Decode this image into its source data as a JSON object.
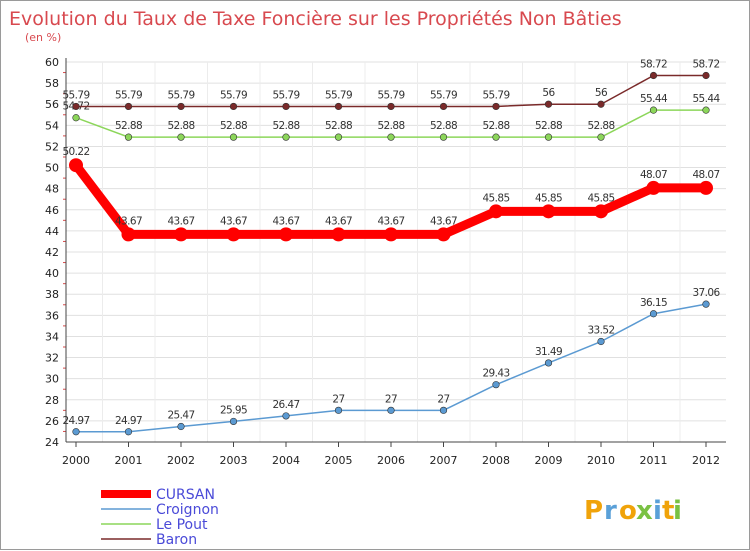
{
  "chart_data": {
    "type": "line",
    "title": "Evolution du Taux de Taxe Foncière sur les Propriétés Non Bâties",
    "unit_label": "(en %)",
    "x": [
      "2000",
      "2001",
      "2002",
      "2003",
      "2004",
      "2005",
      "2006",
      "2007",
      "2008",
      "2009",
      "2010",
      "2011",
      "2012"
    ],
    "ylim": [
      24,
      60
    ],
    "yticks": [
      24,
      26,
      28,
      30,
      32,
      34,
      36,
      38,
      40,
      42,
      44,
      46,
      48,
      50,
      52,
      54,
      56,
      58,
      60
    ],
    "series": [
      {
        "name": "CURSAN",
        "color": "#ff0000",
        "labels": [
          "50.22",
          "43.67",
          "43.67",
          "43.67",
          "43.67",
          "43.67",
          "43.67",
          "43.67",
          "45.85",
          "45.85",
          "45.85",
          "48.07",
          "48.07"
        ],
        "values": [
          50.22,
          43.67,
          43.67,
          43.67,
          43.67,
          43.67,
          43.67,
          43.67,
          45.85,
          45.85,
          45.85,
          48.07,
          48.07
        ]
      },
      {
        "name": "Croignon",
        "color": "#5b9ad2",
        "labels": [
          "24.97",
          "24.97",
          "25.47",
          "25.95",
          "26.47",
          "27",
          "27",
          "27",
          "29.43",
          "31.49",
          "33.52",
          "36.15",
          "37.06"
        ],
        "values": [
          24.97,
          24.97,
          25.47,
          25.95,
          26.47,
          27,
          27,
          27,
          29.43,
          31.49,
          33.52,
          36.15,
          37.06
        ]
      },
      {
        "name": "Le Pout",
        "color": "#8cd65a",
        "labels": [
          "54.72",
          "52.88",
          "52.88",
          "52.88",
          "52.88",
          "52.88",
          "52.88",
          "52.88",
          "52.88",
          "52.88",
          "52.88",
          "55.44",
          "55.44"
        ],
        "values": [
          54.72,
          52.88,
          52.88,
          52.88,
          52.88,
          52.88,
          52.88,
          52.88,
          52.88,
          52.88,
          52.88,
          55.44,
          55.44
        ]
      },
      {
        "name": "Baron",
        "color": "#7a2a2a",
        "labels": [
          "55.79",
          "55.79",
          "55.79",
          "55.79",
          "55.79",
          "55.79",
          "55.79",
          "55.79",
          "55.79",
          "56",
          "56",
          "58.72",
          "58.72"
        ],
        "values": [
          55.79,
          55.79,
          55.79,
          55.79,
          55.79,
          55.79,
          55.79,
          55.79,
          55.79,
          56,
          56,
          58.72,
          58.72
        ]
      }
    ],
    "legend_position": "bottom-left"
  },
  "brand": {
    "letters": [
      "P",
      "r",
      "o",
      "x",
      "i",
      "t",
      "i"
    ],
    "colors": [
      "#f0a30a",
      "#5aa0d8",
      "#f0a30a",
      "#7ac143",
      "#5aa0d8",
      "#f0a30a",
      "#7ac143"
    ]
  }
}
